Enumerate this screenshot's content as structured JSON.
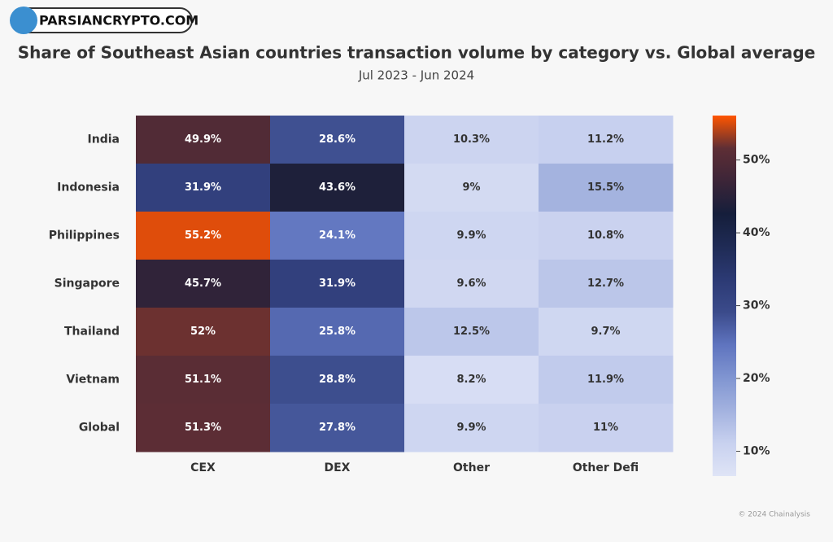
{
  "watermark": "PARSIANCRYPTO.COM",
  "credit": "© 2024 Chainalysis",
  "chart_data": {
    "type": "heatmap",
    "title": "Share of Southeast Asian countries transaction volume by category vs. Global average",
    "subtitle": "Jul 2023 - Jun 2024",
    "x_categories": [
      "CEX",
      "DEX",
      "Other",
      "Other Defi"
    ],
    "y_categories": [
      "India",
      "Indonesia",
      "Philippines",
      "Singapore",
      "Thailand",
      "Vietnam",
      "Global"
    ],
    "values": [
      [
        49.9,
        28.6,
        10.3,
        11.2
      ],
      [
        31.9,
        43.6,
        9,
        15.5
      ],
      [
        55.2,
        24.1,
        9.9,
        10.8
      ],
      [
        45.7,
        31.9,
        9.6,
        12.7
      ],
      [
        52,
        25.8,
        12.5,
        9.7
      ],
      [
        51.1,
        28.8,
        8.2,
        11.9
      ],
      [
        51.3,
        27.8,
        9.9,
        11
      ]
    ],
    "value_labels": [
      [
        "49.9%",
        "28.6%",
        "10.3%",
        "11.2%"
      ],
      [
        "31.9%",
        "43.6%",
        "9%",
        "15.5%"
      ],
      [
        "55.2%",
        "24.1%",
        "9.9%",
        "10.8%"
      ],
      [
        "45.7%",
        "31.9%",
        "9.6%",
        "12.7%"
      ],
      [
        "52%",
        "25.8%",
        "12.5%",
        "9.7%"
      ],
      [
        "51.1%",
        "28.8%",
        "8.2%",
        "11.9%"
      ],
      [
        "51.3%",
        "27.8%",
        "9.9%",
        "11%"
      ]
    ],
    "zlim": [
      6.6,
      56.1
    ],
    "zticks": [
      {
        "value": 10,
        "label": "10%"
      },
      {
        "value": 20,
        "label": "20%"
      },
      {
        "value": 30,
        "label": "30%"
      },
      {
        "value": 40,
        "label": "40%"
      },
      {
        "value": 50,
        "label": "50%"
      }
    ],
    "colormap": [
      "#dfe4f6",
      "#c8d1ef",
      "#a3b2df",
      "#8095d1",
      "#5f74bf",
      "#3b4b8b",
      "#2c3a74",
      "#1f2b55",
      "#151e3b",
      "#3c2538",
      "#5e2e35",
      "#ff5500"
    ]
  }
}
